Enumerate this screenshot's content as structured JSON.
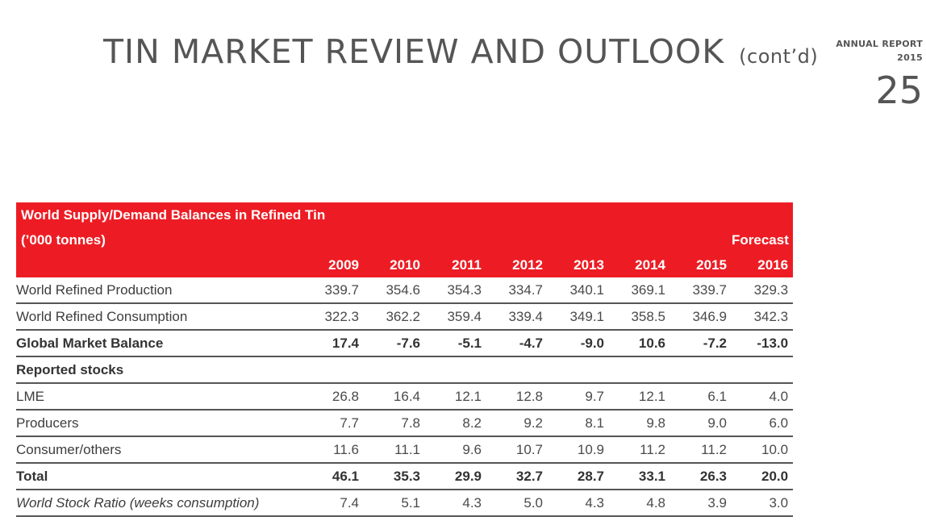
{
  "header": {
    "title": "TIN MARKET REVIEW AND OUTLOOK",
    "title_suffix": "(cont’d)",
    "report_label": "ANNUAL REPORT",
    "report_year": "2015",
    "page_number": "25"
  },
  "table": {
    "title": "World Supply/Demand Balances in Refined Tin",
    "unit": "(’000 tonnes)",
    "forecast_label": "Forecast",
    "years": [
      "2009",
      "2010",
      "2011",
      "2012",
      "2013",
      "2014",
      "2015",
      "2016"
    ],
    "rows": [
      {
        "label": "World Refined Production",
        "values": [
          "339.7",
          "354.6",
          "354.3",
          "334.7",
          "340.1",
          "369.1",
          "339.7",
          "329.3"
        ]
      },
      {
        "label": "World Refined Consumption",
        "values": [
          "322.3",
          "362.2",
          "359.4",
          "339.4",
          "349.1",
          "358.5",
          "346.9",
          "342.3"
        ]
      },
      {
        "label": "Global Market Balance",
        "values": [
          "17.4",
          "-7.6",
          "-5.1",
          "-4.7",
          "-9.0",
          "10.6",
          "-7.2",
          "-13.0"
        ]
      },
      {
        "label": "Reported stocks",
        "values": []
      },
      {
        "label": "LME",
        "values": [
          "26.8",
          "16.4",
          "12.1",
          "12.8",
          "9.7",
          "12.1",
          "6.1",
          "4.0"
        ]
      },
      {
        "label": "Producers",
        "values": [
          "7.7",
          "7.8",
          "8.2",
          "9.2",
          "8.1",
          "9.8",
          "9.0",
          "6.0"
        ]
      },
      {
        "label": "Consumer/others",
        "values": [
          "11.6",
          "11.1",
          "9.6",
          "10.7",
          "10.9",
          "11.2",
          "11.2",
          "10.0"
        ]
      },
      {
        "label": "Total",
        "values": [
          "46.1",
          "35.3",
          "29.9",
          "32.7",
          "28.7",
          "33.1",
          "26.3",
          "20.0"
        ]
      },
      {
        "label": "World Stock Ratio (weeks consumption)",
        "values": [
          "7.4",
          "5.1",
          "4.3",
          "5.0",
          "4.3",
          "4.8",
          "3.9",
          "3.0"
        ]
      }
    ]
  },
  "colors": {
    "header_red": "#ed1c24",
    "text_grey": "#555555",
    "rule": "#555555"
  }
}
